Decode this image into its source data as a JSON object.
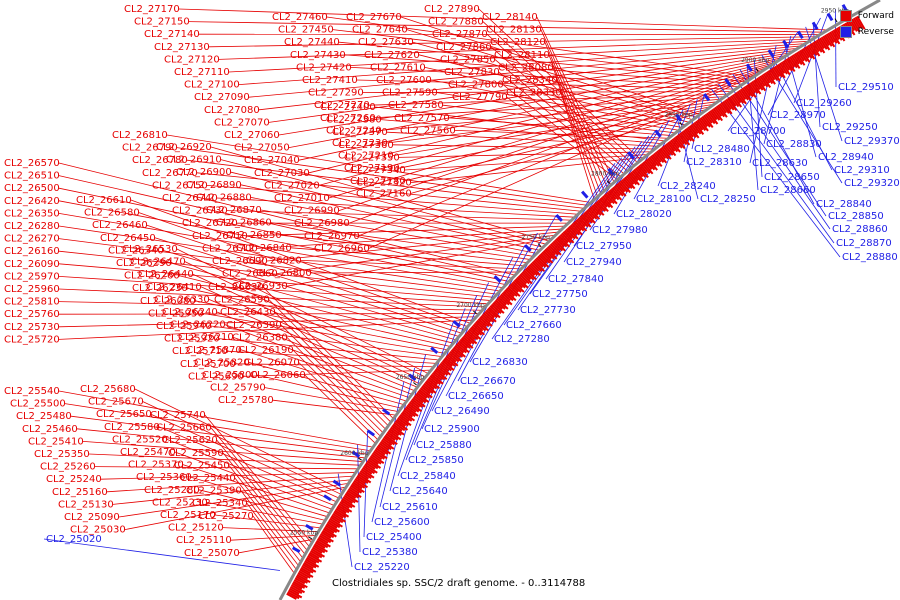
{
  "title": "Clostridiales sp. SSC/2 draft genome. - 0..3114788",
  "legend": [
    {
      "label": "Forward",
      "color": "#e60000"
    },
    {
      "label": "Reverse",
      "color": "#1f1fe6"
    }
  ],
  "colors": {
    "forward": "#e60000",
    "reverse": "#1f1fe6",
    "backbone": "#888888",
    "ticks": "#000000"
  },
  "ticks": [
    "2550 kbp",
    "2600 kbp",
    "2650 kbp",
    "2700 kbp",
    "2750 kbp",
    "2800 kbp",
    "2850 kbp",
    "2900 kbp",
    "2950 kbp"
  ],
  "forward_labels": [
    "CL2_27170",
    "CL2_27150",
    "CL2_27140",
    "CL2_27130",
    "CL2_27120",
    "CL2_27110",
    "CL2_27100",
    "CL2_27090",
    "CL2_27080",
    "CL2_27070",
    "CL2_27060",
    "CL2_27050",
    "CL2_27040",
    "CL2_27030",
    "CL2_27020",
    "CL2_27010",
    "CL2_26990",
    "CL2_26980",
    "CL2_26970",
    "CL2_26960",
    "CL2_27460",
    "CL2_27450",
    "CL2_27440",
    "CL2_27430",
    "CL2_27420",
    "CL2_27410",
    "CL2_27290",
    "CL2_27270",
    "CL2_27260",
    "CL2_27240",
    "CL2_27230",
    "CL2_27210",
    "CL2_27190",
    "CL2_27180",
    "CL2_27160",
    "CL2_27670",
    "CL2_27640",
    "CL2_27630",
    "CL2_27620",
    "CL2_27610",
    "CL2_27600",
    "CL2_27590",
    "CL2_27580",
    "CL2_27570",
    "CL2_27560",
    "CL2_27400",
    "CL2_27380",
    "CL2_27370",
    "CL2_27360",
    "CL2_27350",
    "CL2_27340",
    "CL2_27320",
    "CL2_27890",
    "CL2_27880",
    "CL2_27870",
    "CL2_27860",
    "CL2_27850",
    "CL2_27830",
    "CL2_27800",
    "CL2_27790",
    "CL2_28140",
    "CL2_28130",
    "CL2_28120",
    "CL2_28110",
    "CL2_28080",
    "CL2_28340",
    "CL2_28330",
    "CL2_26810",
    "CL2_26790",
    "CL2_26780",
    "CL2_26770",
    "CL2_26750",
    "CL2_26740",
    "CL2_26730",
    "CL2_26720",
    "CL2_26710",
    "CL2_26700",
    "CL2_26690",
    "CL2_26660",
    "CL2_26930",
    "CL2_26920",
    "CL2_26910",
    "CL2_26900",
    "CL2_26890",
    "CL2_26880",
    "CL2_26870",
    "CL2_26860",
    "CL2_26850",
    "CL2_26840",
    "CL2_26820",
    "CL2_26800",
    "CL2_26570",
    "CL2_26510",
    "CL2_26500",
    "CL2_26420",
    "CL2_26350",
    "CL2_26280",
    "CL2_26270",
    "CL2_26160",
    "CL2_26090",
    "CL2_25970",
    "CL2_25960",
    "CL2_25810",
    "CL2_25760",
    "CL2_25730",
    "CL2_25720",
    "CL2_26610",
    "CL2_26580",
    "CL2_26460",
    "CL2_26450",
    "CL2_26340",
    "CL2_26290",
    "CL2_26260",
    "CL2_26230",
    "CL2_26080",
    "CL2_25950",
    "CL2_25940",
    "CL2_25920",
    "CL2_25710",
    "CL2_25700",
    "CL2_25690",
    "CL2_26530",
    "CL2_26470",
    "CL2_26440",
    "CL2_26410",
    "CL2_26330",
    "CL2_26240",
    "CL2_26220",
    "CL2_26210",
    "CL2_25870",
    "CL2_25820",
    "CL2_25800",
    "CL2_25790",
    "CL2_25780",
    "CL2_26630",
    "CL2_26590",
    "CL2_26430",
    "CL2_26390",
    "CL2_26380",
    "CL2_26190",
    "CL2_26070",
    "CL2_26060",
    "CL2_25540",
    "CL2_25500",
    "CL2_25480",
    "CL2_25460",
    "CL2_25410",
    "CL2_25350",
    "CL2_25260",
    "CL2_25240",
    "CL2_25160",
    "CL2_25130",
    "CL2_25090",
    "CL2_25030",
    "CL2_25680",
    "CL2_25670",
    "CL2_25650",
    "CL2_25580",
    "CL2_25520",
    "CL2_25470",
    "CL2_25370",
    "CL2_25360",
    "CL2_25280",
    "CL2_25230",
    "CL2_25170",
    "CL2_25120",
    "CL2_25110",
    "CL2_25070",
    "CL2_25740",
    "CL2_25660",
    "CL2_25620",
    "CL2_25590",
    "CL2_25450",
    "CL2_25440",
    "CL2_25390",
    "CL2_25340",
    "CL2_25270"
  ],
  "reverse_labels": [
    "CL2_25020",
    "CL2_29510",
    "CL2_29260",
    "CL2_28970",
    "CL2_29250",
    "CL2_29370",
    "CL2_28700",
    "CL2_28830",
    "CL2_28940",
    "CL2_28630",
    "CL2_29310",
    "CL2_29320",
    "CL2_28650",
    "CL2_28660",
    "CL2_28840",
    "CL2_28850",
    "CL2_28860",
    "CL2_28870",
    "CL2_28880",
    "CL2_28480",
    "CL2_28310",
    "CL2_28240",
    "CL2_28100",
    "CL2_28250",
    "CL2_28020",
    "CL2_27980",
    "CL2_27950",
    "CL2_27940",
    "CL2_27840",
    "CL2_27750",
    "CL2_27730",
    "CL2_27660",
    "CL2_27280",
    "CL2_26830",
    "CL2_26670",
    "CL2_26650",
    "CL2_26490",
    "CL2_25900",
    "CL2_25880",
    "CL2_25850",
    "CL2_25840",
    "CL2_25640",
    "CL2_25610",
    "CL2_25600",
    "CL2_25400",
    "CL2_25380",
    "CL2_25220"
  ]
}
